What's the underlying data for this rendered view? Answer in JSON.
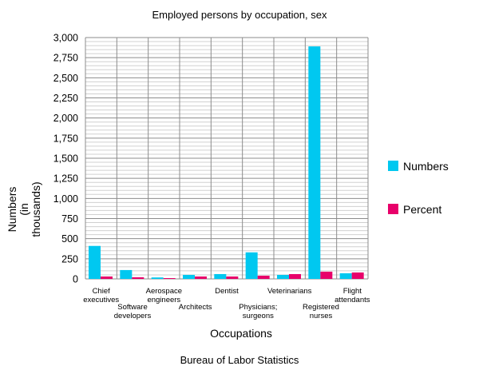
{
  "chart_data": {
    "type": "bar",
    "title": "Employed persons by occupation, sex",
    "xlabel": "Occupations",
    "ylabel": [
      "Numbers",
      "(in",
      "thousands)"
    ],
    "source": "Bureau of Labor Statistics",
    "ylim": [
      0,
      3000
    ],
    "yticks": [
      "0",
      "250",
      "500",
      "750",
      "1,000",
      "1,250",
      "1,500",
      "1,750",
      "2,000",
      "2,250",
      "2,500",
      "2,750",
      "3,000"
    ],
    "categories": [
      [
        "Chief",
        "executives"
      ],
      [
        "Software",
        "developers"
      ],
      [
        "Aerospace",
        "engineers"
      ],
      [
        "Architects"
      ],
      [
        "Dentist"
      ],
      [
        "Physicians;",
        "surgeons"
      ],
      [
        "Veterinarians"
      ],
      [
        "Registered",
        "nurses"
      ],
      [
        "Flight",
        "attendants"
      ]
    ],
    "series": [
      {
        "name": "Numbers",
        "color": "#00c8f0",
        "values": [
          410,
          110,
          18,
          50,
          60,
          330,
          50,
          2890,
          70
        ]
      },
      {
        "name": "Percent",
        "color": "#e8006a",
        "values": [
          30,
          20,
          10,
          30,
          30,
          40,
          60,
          90,
          80
        ]
      }
    ],
    "grid": true,
    "legend_position": "right"
  }
}
